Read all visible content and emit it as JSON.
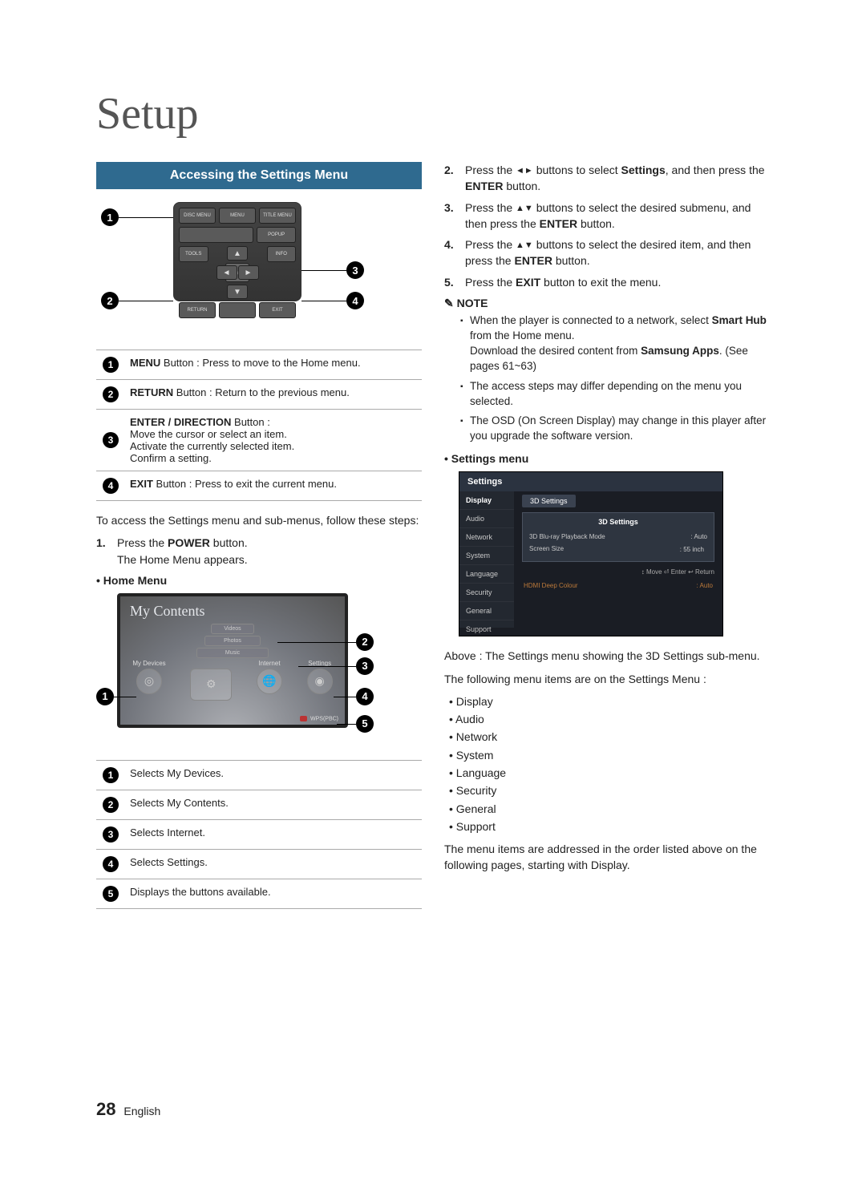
{
  "page": {
    "title": "Setup",
    "section_header": "Accessing the Settings Menu",
    "page_number": "28",
    "page_lang": "English"
  },
  "remote": {
    "top_row": [
      "DISC MENU",
      "MENU",
      "TITLE MENU"
    ],
    "mid_left": "TOOLS",
    "mid_right": "INFO",
    "popup": "POPUP",
    "bottom_left": "RETURN",
    "bottom_right": "EXIT"
  },
  "button_table": [
    {
      "n": "1",
      "html": "<b>MENU</b> Button : Press to move to the Home menu."
    },
    {
      "n": "2",
      "html": "<b>RETURN</b> Button : Return to the previous menu."
    },
    {
      "n": "3",
      "html": "<b>ENTER / DIRECTION</b> Button :<br>Move the cursor or select an item.<br>Activate the currently selected item.<br>Confirm a setting."
    },
    {
      "n": "4",
      "html": "<b>EXIT</b> Button : Press to exit the current menu."
    }
  ],
  "left_intro": "To access the Settings menu and sub-menus, follow these steps:",
  "step1": {
    "n": "1",
    "html": "Press the <b>POWER</b> button.<br>The Home Menu appears."
  },
  "home_menu_label": "Home Menu",
  "home_tv": {
    "title": "My Contents",
    "stack": [
      "Videos",
      "Photos",
      "Music"
    ],
    "items": [
      "My Devices",
      "",
      "Internet",
      "Settings"
    ],
    "footer": "WPS(PBC)"
  },
  "home_table": [
    {
      "n": "1",
      "text": "Selects My Devices."
    },
    {
      "n": "2",
      "text": "Selects My Contents."
    },
    {
      "n": "3",
      "text": "Selects Internet."
    },
    {
      "n": "4",
      "text": "Selects Settings."
    },
    {
      "n": "5",
      "text": "Displays the buttons available."
    }
  ],
  "right_steps": [
    {
      "n": "2",
      "html": "Press the <span class='triangle'>◄►</span> buttons to select <b>Settings</b>, and then press the <b>ENTER</b> button."
    },
    {
      "n": "3",
      "html": "Press the <span class='triangle'>▲▼</span> buttons to select the desired submenu, and then press the <b>ENTER</b> button."
    },
    {
      "n": "4",
      "html": "Press the <span class='triangle'>▲▼</span> buttons to select the desired item, and then press the <b>ENTER</b> button."
    },
    {
      "n": "5",
      "html": "Press the <b>EXIT</b> button to exit the menu."
    }
  ],
  "note_label": "NOTE",
  "notes": [
    "When the player is connected to a network, select <b>Smart Hub</b> from the Home menu.<br>Download the desired content from <b>Samsung Apps</b>. (See pages 61~63)",
    "The access steps may differ depending on the menu you selected.",
    "The OSD (On Screen Display) may change in this player after you upgrade the software version."
  ],
  "settings_menu_label": "Settings menu",
  "settings_mock": {
    "header": "Settings",
    "sidebar": [
      "Display",
      "Audio",
      "Network",
      "System",
      "Language",
      "Security",
      "General",
      "Support"
    ],
    "active_sidebar": "Display",
    "tab": "3D Settings",
    "panel_title": "3D Settings",
    "row1_label": "3D Blu-ray Playback Mode",
    "row1_val": ": Auto",
    "row2_label": "Screen Size",
    "row2_val": ": 55 inch",
    "hints": "↕ Move    ⏎ Enter    ↩ Return",
    "extra_label": "HDMI Deep Colour",
    "extra_val": ": Auto"
  },
  "after_mock": "Above : The Settings menu showing the 3D Settings sub-menu.",
  "menu_intro": "The following menu items are on the Settings Menu :",
  "menu_items": [
    "Display",
    "Audio",
    "Network",
    "System",
    "Language",
    "Security",
    "General",
    "Support"
  ],
  "closing": "The menu items are addressed in the order listed above on the following pages, starting with Display.",
  "colors": {
    "header_bg": "#2f6a8f"
  }
}
